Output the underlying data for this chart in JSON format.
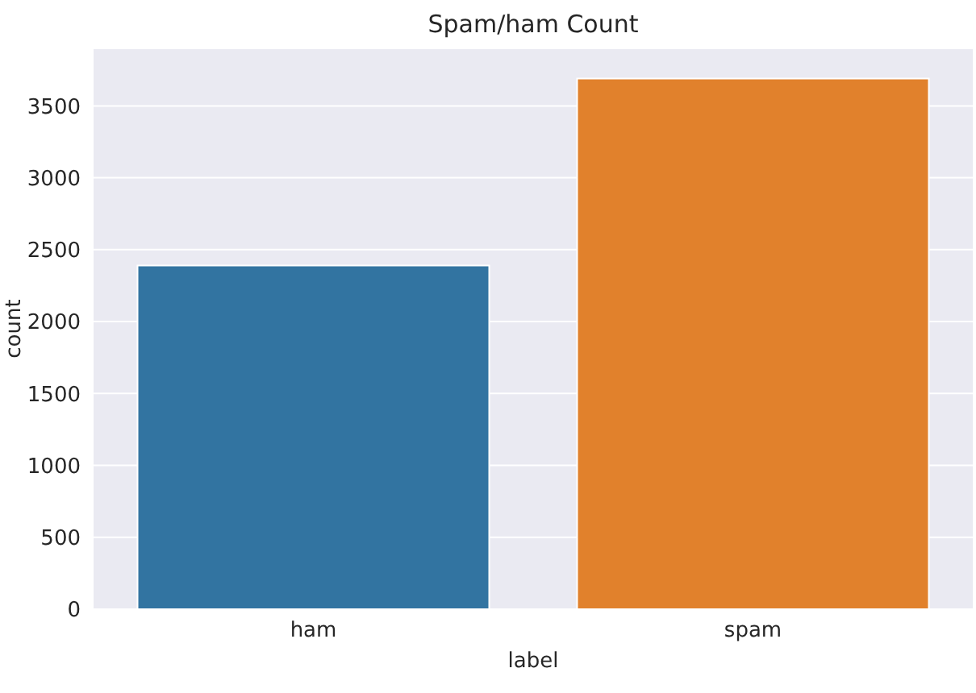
{
  "chart_data": {
    "type": "bar",
    "title": "Spam/ham Count",
    "xlabel": "label",
    "ylabel": "count",
    "categories": [
      "ham",
      "spam"
    ],
    "values": [
      2390,
      3690
    ],
    "colors": [
      "#3274a1",
      "#e1812c"
    ],
    "ylim": [
      0,
      3900
    ],
    "yticks": [
      0,
      500,
      1000,
      1500,
      2000,
      2500,
      3000,
      3500
    ],
    "grid": "y"
  }
}
